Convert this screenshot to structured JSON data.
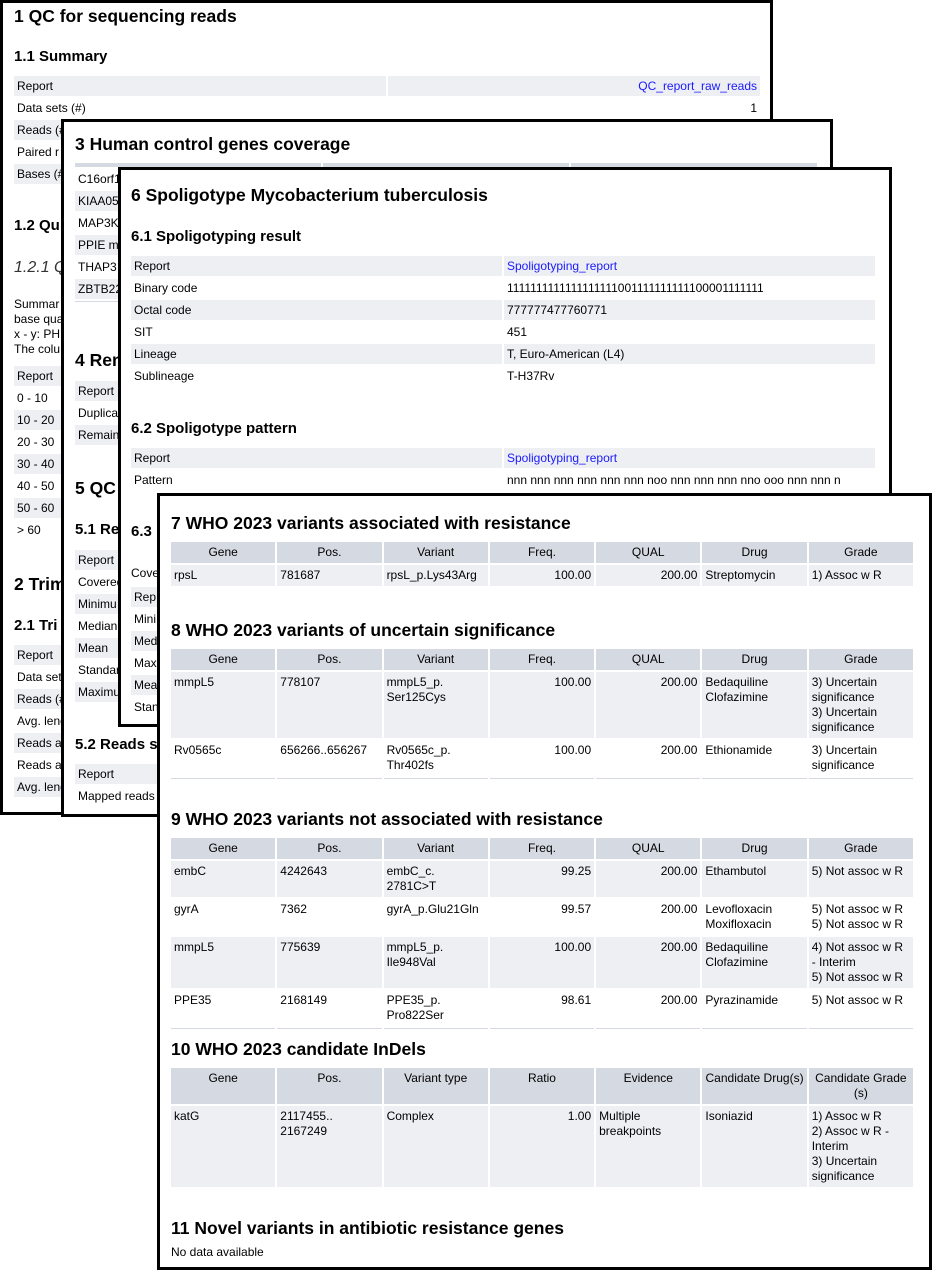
{
  "colors": {
    "header_bg": "#d5d9e1",
    "row_alt_bg": "#eeeff3",
    "link": "#1a1aff",
    "border": "#000000"
  },
  "qc_panel": {
    "title": "1 QC for sequencing reads",
    "summary_heading": "1.1 Summary",
    "summary_rows": [
      [
        "Report",
        "QC_report_raw_reads"
      ],
      [
        "Data sets (#)",
        "1"
      ],
      [
        "Reads (#",
        ""
      ],
      [
        "Paired r",
        ""
      ],
      [
        "Bases (#",
        ""
      ]
    ],
    "quality_heading": "1.2 Qu",
    "quality_subheading": "1.2.1 Q",
    "quality_text": [
      "Summar",
      "base qua",
      "x - y: PHR",
      "The colu"
    ],
    "quality_rows": [
      [
        "Report"
      ],
      [
        "0 - 10"
      ],
      [
        "10 - 20"
      ],
      [
        "20 - 30"
      ],
      [
        "30 - 40"
      ],
      [
        "40 - 50"
      ],
      [
        "50 - 60"
      ],
      [
        "> 60"
      ]
    ],
    "trim_heading": "2 Trim",
    "trim_subheading": "2.1 Tri",
    "trim_rows": [
      [
        "Report"
      ],
      [
        "Data set"
      ],
      [
        "Reads (#"
      ],
      [
        "Avg. leng"
      ],
      [
        "Reads a"
      ],
      [
        "Reads a"
      ],
      [
        "Avg. leng"
      ]
    ]
  },
  "human_panel": {
    "title": "3 Human control genes coverage",
    "coverage_headers": [
      "",
      "",
      ""
    ],
    "coverage_rows": [
      [
        "C16orf1",
        "",
        ""
      ],
      [
        "KIAA05",
        "",
        ""
      ],
      [
        "MAP3K",
        "",
        ""
      ],
      [
        "PPIE m",
        "",
        ""
      ],
      [
        "THAP3",
        "",
        ""
      ],
      [
        "ZBTB22",
        "",
        ""
      ]
    ],
    "removal_heading": "4 Rem",
    "removal_rows": [
      [
        "Report"
      ],
      [
        "Duplica"
      ],
      [
        "Remain"
      ]
    ],
    "qc_heading": "5 QC",
    "qc_sub_heading": "5.1 Re",
    "qc_rows": [
      [
        "Report"
      ],
      [
        "Covered"
      ],
      [
        "Minimu"
      ],
      [
        "Median"
      ],
      [
        "Mean"
      ],
      [
        "Standar"
      ],
      [
        "Maximu"
      ]
    ],
    "reads_heading": "5.2 Reads s",
    "reads_rows": [
      [
        "Report"
      ],
      [
        "Mapped reads"
      ]
    ]
  },
  "spoligo_panel": {
    "title": "6 Spoligotype Mycobacterium tuberculosis",
    "result_heading": "6.1 Spoligotyping result",
    "result_rows": [
      [
        "Report",
        "Spoligotyping_report"
      ],
      [
        "Binary code",
        "1111111111111111111001111111111100001111111"
      ],
      [
        "Octal code",
        "777777477760771"
      ],
      [
        "SIT",
        "451"
      ],
      [
        "Lineage",
        "T, Euro-American (L4)"
      ],
      [
        "Sublineage",
        "T-H37Rv"
      ]
    ],
    "pattern_heading": "6.2 Spoligotype pattern",
    "pattern_rows": [
      [
        "Report",
        "Spoligotyping_report"
      ],
      [
        "Pattern",
        "nnn nnn nnn nnn nnn nnn noo nnn nnn nnn nno ooo nnn nnn n"
      ]
    ],
    "coverage_heading": "6.3",
    "coverage_text": "Cove",
    "coverage_rows": [
      [
        "Rep"
      ],
      [
        "Mini"
      ],
      [
        "Med"
      ],
      [
        "Maxi"
      ],
      [
        "Mea"
      ],
      [
        "Stan"
      ]
    ]
  },
  "who_panel": {
    "s7": {
      "heading": "7 WHO 2023 variants associated with resistance",
      "headers": [
        "Gene",
        "Pos.",
        "Variant",
        "Freq.",
        "QUAL",
        "Drug",
        "Grade"
      ],
      "rows": [
        [
          "rpsL",
          "781687",
          "rpsL_p.Lys43Arg",
          "100.00",
          "200.00",
          "Streptomycin",
          "1) Assoc w R"
        ]
      ]
    },
    "s8": {
      "heading": "8 WHO 2023 variants of uncertain significance",
      "headers": [
        "Gene",
        "Pos.",
        "Variant",
        "Freq.",
        "QUAL",
        "Drug",
        "Grade"
      ],
      "rows": [
        [
          "mmpL5",
          "778107",
          "mmpL5_p.\nSer125Cys",
          "100.00",
          "200.00",
          "Bedaquiline\nClofazimine",
          "3) Uncertain\nsignificance\n3) Uncertain\nsignificance"
        ],
        [
          "Rv0565c",
          "656266..656267",
          "Rv0565c_p.\nThr402fs",
          "100.00",
          "200.00",
          "Ethionamide",
          "3) Uncertain\nsignificance"
        ]
      ]
    },
    "s9": {
      "heading": "9 WHO 2023 variants not associated with resistance",
      "headers": [
        "Gene",
        "Pos.",
        "Variant",
        "Freq.",
        "QUAL",
        "Drug",
        "Grade"
      ],
      "rows": [
        [
          "embC",
          "4242643",
          "embC_c.\n2781C>T",
          "99.25",
          "200.00",
          "Ethambutol",
          "5) Not assoc w R"
        ],
        [
          "gyrA",
          "7362",
          "gyrA_p.Glu21Gln",
          "99.57",
          "200.00",
          "Levofloxacin\nMoxifloxacin",
          "5) Not assoc w R\n5) Not assoc w R"
        ],
        [
          "mmpL5",
          "775639",
          "mmpL5_p.\nIle948Val",
          "100.00",
          "200.00",
          "Bedaquiline\nClofazimine",
          "4) Not assoc w R\n- Interim\n5) Not assoc w R"
        ],
        [
          "PPE35",
          "2168149",
          "PPE35_p.\nPro822Ser",
          "98.61",
          "200.00",
          "Pyrazinamide",
          "5) Not assoc w R"
        ]
      ]
    },
    "s10": {
      "heading": "10 WHO 2023 candidate InDels",
      "headers": [
        "Gene",
        "Pos.",
        "Variant type",
        "Ratio",
        "Evidence",
        "Candidate Drug(s)",
        "Candidate Grade\n(s)"
      ],
      "rows": [
        [
          "katG",
          "2117455..\n2167249",
          "Complex",
          "1.00",
          "Multiple\nbreakpoints",
          "Isoniazid",
          "1) Assoc w R\n2) Assoc w R -\nInterim\n3) Uncertain\nsignificance"
        ]
      ]
    },
    "s11": {
      "heading": "11 Novel variants in antibiotic resistance genes",
      "text": "No data available"
    }
  }
}
